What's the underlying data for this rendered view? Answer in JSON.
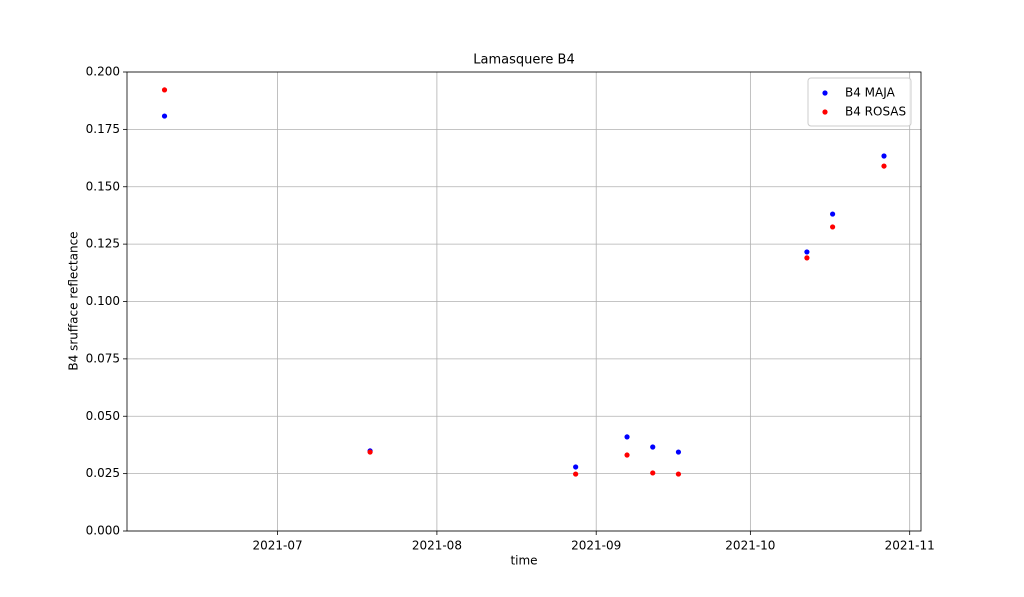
{
  "chart_data": {
    "type": "scatter",
    "title": "Lamasquere B4",
    "xlabel": "time",
    "ylabel": "B4 srufface reflectance",
    "x": [
      160,
      200,
      240,
      250,
      255,
      260,
      285,
      290,
      300
    ],
    "series": [
      {
        "name": "B4 MAJA",
        "color": "#0000ff",
        "values": [
          0.1808,
          0.0349,
          0.0279,
          0.041,
          0.0366,
          0.0344,
          0.1216,
          0.1381,
          0.1634
        ]
      },
      {
        "name": "B4 ROSAS",
        "color": "#ff0000",
        "values": [
          0.1922,
          0.0344,
          0.0248,
          0.0331,
          0.0253,
          0.0248,
          0.119,
          0.1325,
          0.159
        ]
      }
    ],
    "xlim": [
      152.7,
      307.2
    ],
    "xticks": [
      {
        "value": 182,
        "label": "2021-07"
      },
      {
        "value": 213,
        "label": "2021-08"
      },
      {
        "value": 244,
        "label": "2021-09"
      },
      {
        "value": 274,
        "label": "2021-10"
      },
      {
        "value": 305,
        "label": "2021-11"
      }
    ],
    "ylim": [
      0,
      0.2
    ],
    "yticks": [
      {
        "value": 0,
        "label": "0.000"
      },
      {
        "value": 0.025,
        "label": "0.025"
      },
      {
        "value": 0.05,
        "label": "0.050"
      },
      {
        "value": 0.075,
        "label": "0.075"
      },
      {
        "value": 0.1,
        "label": "0.100"
      },
      {
        "value": 0.125,
        "label": "0.125"
      },
      {
        "value": 0.15,
        "label": "0.150"
      },
      {
        "value": 0.175,
        "label": "0.175"
      },
      {
        "value": 0.2,
        "label": "0.200"
      }
    ],
    "grid": true,
    "legend": "upper right"
  }
}
